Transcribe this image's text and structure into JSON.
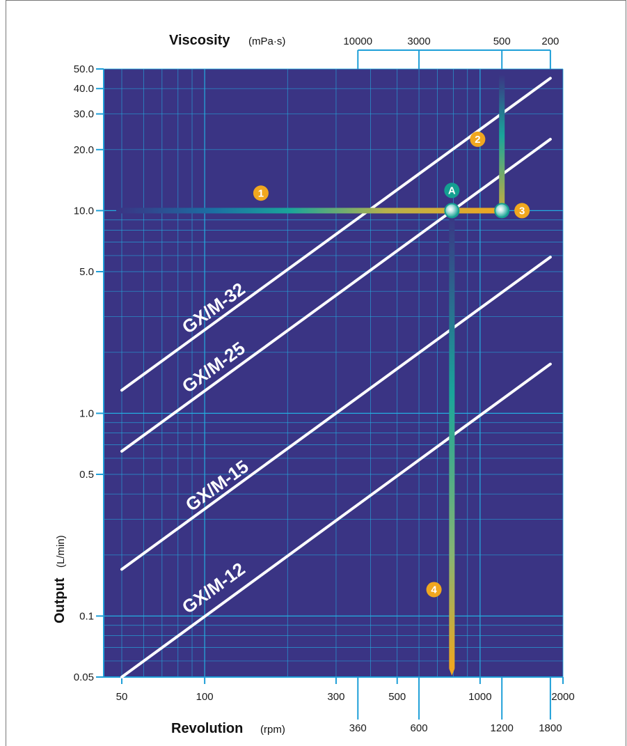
{
  "chart_data": {
    "type": "line",
    "x_scale": "log",
    "y_scale": "log",
    "xlim": [
      50,
      2000
    ],
    "ylim": [
      0.05,
      50
    ],
    "grid": true,
    "colors": {
      "plot_bg": "#3a3484",
      "grid": "#23aee0",
      "axis": "#1e9fd8",
      "series": "#ffffff",
      "marker": "#f0a71f",
      "marker_a": "#149f91"
    },
    "viscosity_axis": {
      "title": "Viscosity",
      "unit": "(mPa·s)",
      "ticks": [
        {
          "label": "10000",
          "rpm": 360
        },
        {
          "label": "3000",
          "rpm": 600
        },
        {
          "label": "500",
          "rpm": 1200
        },
        {
          "label": "200",
          "rpm": 1800
        }
      ]
    },
    "x_axis": {
      "title": "Revolution",
      "unit": "(rpm)",
      "ticks": [
        {
          "value": 50,
          "label": "50"
        },
        {
          "value": 100,
          "label": "100"
        },
        {
          "value": 300,
          "label": "300"
        },
        {
          "value": 500,
          "label": "500"
        },
        {
          "value": 1000,
          "label": "1000"
        },
        {
          "value": 2000,
          "label": "2000"
        }
      ],
      "secondary_ticks": [
        {
          "value": 360,
          "label": "360"
        },
        {
          "value": 600,
          "label": "600"
        },
        {
          "value": 1200,
          "label": "1200"
        },
        {
          "value": 1800,
          "label": "1800"
        }
      ]
    },
    "y_axis": {
      "title": "Output",
      "unit": "(L/min)",
      "ticks": [
        {
          "value": 0.05,
          "label": "0.05"
        },
        {
          "value": 0.1,
          "label": "0.1"
        },
        {
          "value": 0.5,
          "label": "0.5"
        },
        {
          "value": 1,
          "label": "1.0"
        },
        {
          "value": 5,
          "label": "5.0"
        },
        {
          "value": 10,
          "label": "10.0"
        },
        {
          "value": 20,
          "label": "20.0"
        },
        {
          "value": 30,
          "label": "30.0"
        },
        {
          "value": 40,
          "label": "40.0"
        },
        {
          "value": 50,
          "label": "50.0"
        }
      ]
    },
    "series": [
      {
        "name": "GX/M-32",
        "x": [
          50,
          1800
        ],
        "y": [
          1.3,
          45
        ]
      },
      {
        "name": "GX/M-25",
        "x": [
          50,
          1800
        ],
        "y": [
          0.65,
          22.5
        ]
      },
      {
        "name": "GX/M-15",
        "x": [
          50,
          1800
        ],
        "y": [
          0.17,
          5.9
        ]
      },
      {
        "name": "GX/M-12",
        "x": [
          50,
          1800
        ],
        "y": [
          0.05,
          1.75
        ]
      }
    ],
    "example_path": {
      "point_a": {
        "rpm": 790,
        "output": 10,
        "label": "A"
      },
      "point_3": {
        "rpm": 1200,
        "output": 10
      },
      "steps": [
        {
          "label": "1",
          "rpm": 160,
          "output": 12.2
        },
        {
          "label": "2",
          "rpm": 980,
          "output": 22.5
        },
        {
          "label": "3",
          "rpm": 1420,
          "output": 10
        },
        {
          "label": "4",
          "rpm": 680,
          "output": 0.135
        }
      ],
      "bottom_output": 0.055,
      "top_output": 47
    }
  }
}
